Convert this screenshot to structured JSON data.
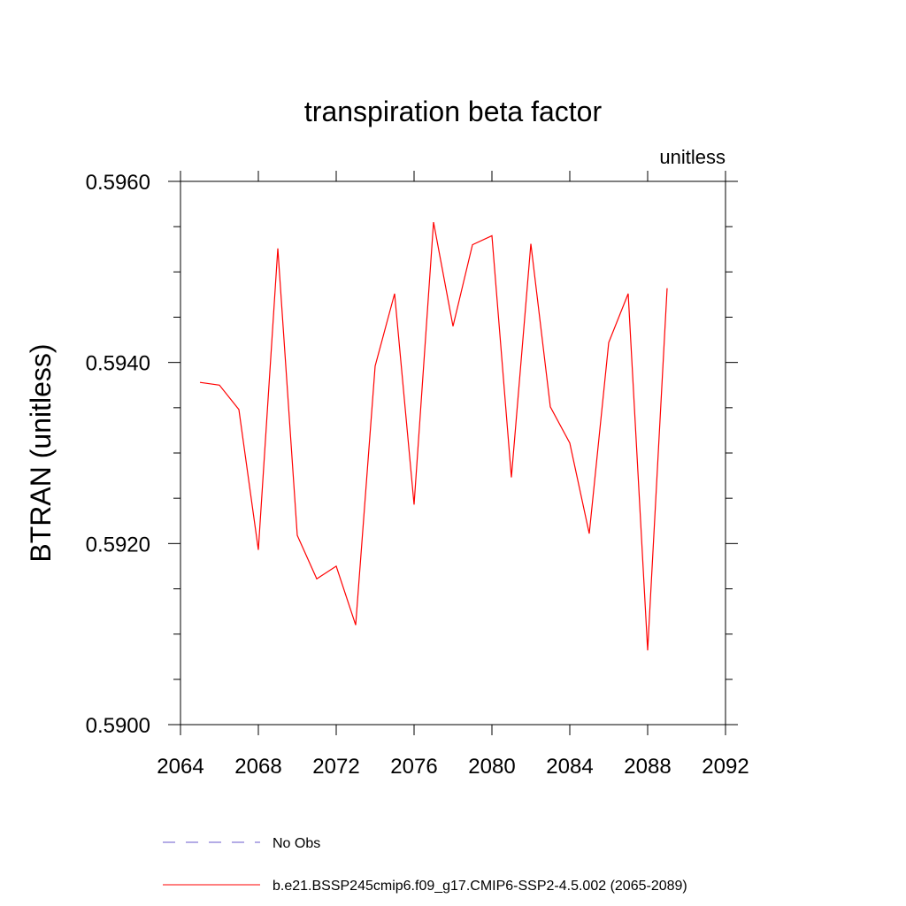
{
  "chart_data": {
    "type": "line",
    "title": "transpiration beta factor",
    "units_label": "unitless",
    "ylabel": "BTRAN  (unitless)",
    "xlabel": "",
    "xlim": [
      2064,
      2092
    ],
    "ylim": [
      0.59,
      0.596
    ],
    "x_ticks": [
      "2064",
      "2068",
      "2072",
      "2076",
      "2080",
      "2084",
      "2088",
      "2092"
    ],
    "y_ticks": [
      "0.5900",
      "0.5920",
      "0.5940",
      "0.5960"
    ],
    "grid": false,
    "legend_position": "bottom",
    "series": [
      {
        "name": "b.e21.BSSP245cmip6.f09_g17.CMIP6-SSP2-4.5.002 (2065-2089)",
        "color": "#ff0000",
        "style": "solid",
        "x": [
          2065,
          2066,
          2067,
          2068,
          2069,
          2070,
          2071,
          2072,
          2073,
          2074,
          2075,
          2076,
          2077,
          2078,
          2079,
          2080,
          2081,
          2082,
          2083,
          2084,
          2085,
          2086,
          2087,
          2088,
          2089
        ],
        "y": [
          0.59378,
          0.59375,
          0.59348,
          0.59193,
          0.59526,
          0.59209,
          0.59161,
          0.59175,
          0.5911,
          0.59396,
          0.59476,
          0.59243,
          0.59555,
          0.5944,
          0.5953,
          0.5954,
          0.59273,
          0.59531,
          0.59351,
          0.59311,
          0.59211,
          0.59422,
          0.59476,
          0.59082,
          0.59482
        ]
      }
    ],
    "legend": [
      {
        "label": "No Obs",
        "color": "#6a5acd",
        "style": "dashed"
      },
      {
        "label": "b.e21.BSSP245cmip6.f09_g17.CMIP6-SSP2-4.5.002 (2065-2089)",
        "color": "#ff0000",
        "style": "solid"
      }
    ]
  }
}
